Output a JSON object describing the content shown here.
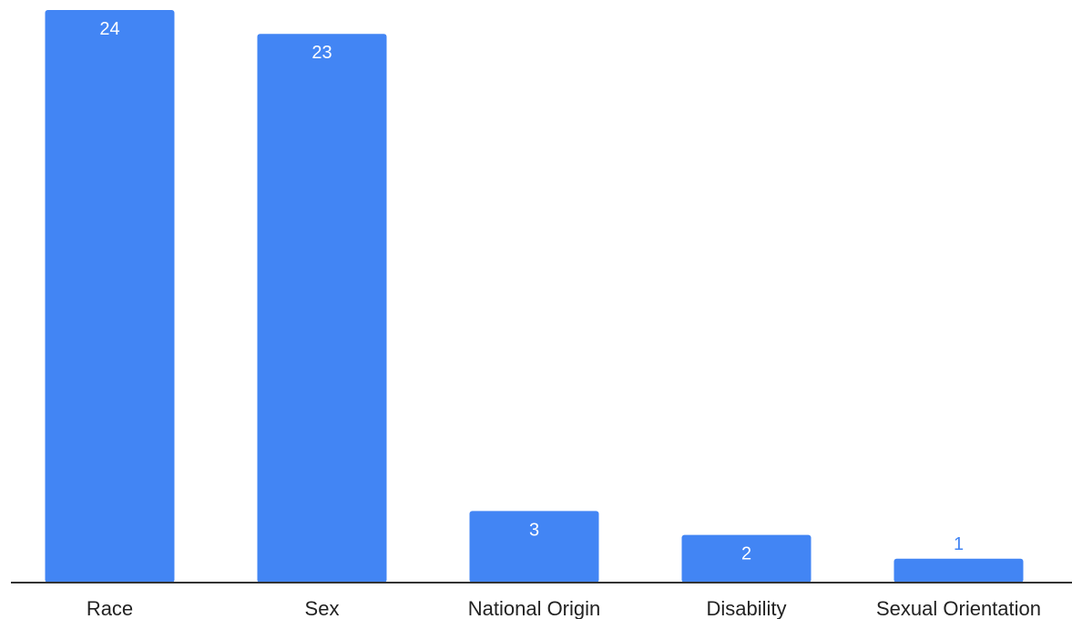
{
  "chart_data": {
    "type": "bar",
    "categories": [
      "Race",
      "Sex",
      "National Origin",
      "Disability",
      "Sexual Orientation"
    ],
    "values": [
      24,
      23,
      3,
      2,
      1
    ],
    "ylim": [
      0,
      24
    ],
    "grid": false,
    "legend": "none",
    "bar_color": "#4285f4",
    "outside_label_color": "#4285f4",
    "axis_color": "#333333"
  }
}
